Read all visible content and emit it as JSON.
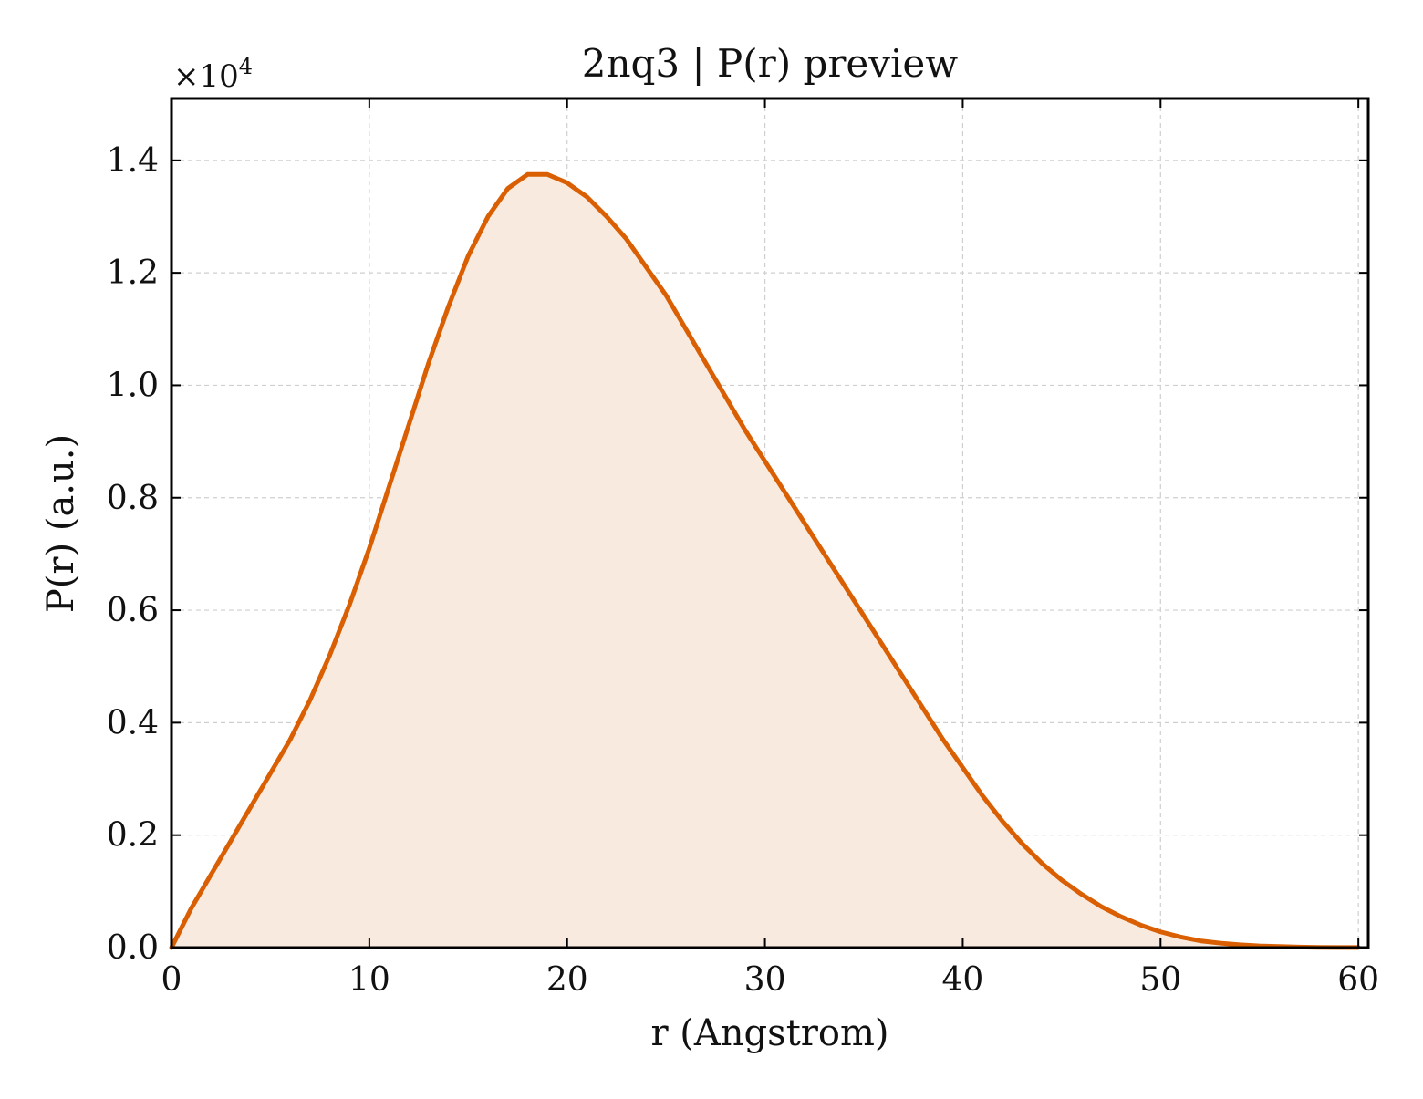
{
  "chart_data": {
    "type": "area",
    "title": "2nq3 | P(r) preview",
    "xlabel": "r (Angstrom)",
    "ylabel": "P(r) (a.u.)",
    "y_offset_text": "×10",
    "y_offset_exponent": "4",
    "xlim": [
      0,
      60.5
    ],
    "ylim": [
      0,
      1.51
    ],
    "xticks": [
      0,
      10,
      20,
      30,
      40,
      50,
      60
    ],
    "xtick_labels": [
      "0",
      "10",
      "20",
      "30",
      "40",
      "50",
      "60"
    ],
    "yticks": [
      0.0,
      0.2,
      0.4,
      0.6,
      0.8,
      1.0,
      1.2,
      1.4
    ],
    "ytick_labels": [
      "0.0",
      "0.2",
      "0.4",
      "0.6",
      "0.8",
      "1.0",
      "1.2",
      "1.4"
    ],
    "grid": true,
    "colors": {
      "line": "#d95f02",
      "fill": "#f9eadf"
    },
    "series": [
      {
        "x": [
          0,
          1,
          2,
          3,
          4,
          5,
          6,
          7,
          8,
          9,
          10,
          11,
          12,
          13,
          14,
          15,
          16,
          17,
          18,
          19,
          20,
          21,
          22,
          23,
          24,
          25,
          26,
          27,
          28,
          29,
          30,
          31,
          32,
          33,
          34,
          35,
          36,
          37,
          38,
          39,
          40,
          41,
          42,
          43,
          44,
          45,
          46,
          47,
          48,
          49,
          50,
          51,
          52,
          53,
          54,
          55,
          56,
          57,
          58,
          59,
          60
        ],
        "y": [
          0.0,
          0.07,
          0.13,
          0.19,
          0.25,
          0.31,
          0.37,
          0.44,
          0.52,
          0.61,
          0.71,
          0.82,
          0.93,
          1.04,
          1.14,
          1.23,
          1.3,
          1.35,
          1.375,
          1.375,
          1.36,
          1.335,
          1.3,
          1.26,
          1.21,
          1.16,
          1.1,
          1.04,
          0.98,
          0.92,
          0.865,
          0.81,
          0.755,
          0.7,
          0.645,
          0.59,
          0.535,
          0.48,
          0.425,
          0.37,
          0.32,
          0.27,
          0.225,
          0.185,
          0.15,
          0.12,
          0.095,
          0.073,
          0.055,
          0.04,
          0.028,
          0.019,
          0.012,
          0.008,
          0.005,
          0.003,
          0.002,
          0.001,
          0.0005,
          0.0003,
          0.0002
        ]
      }
    ]
  }
}
